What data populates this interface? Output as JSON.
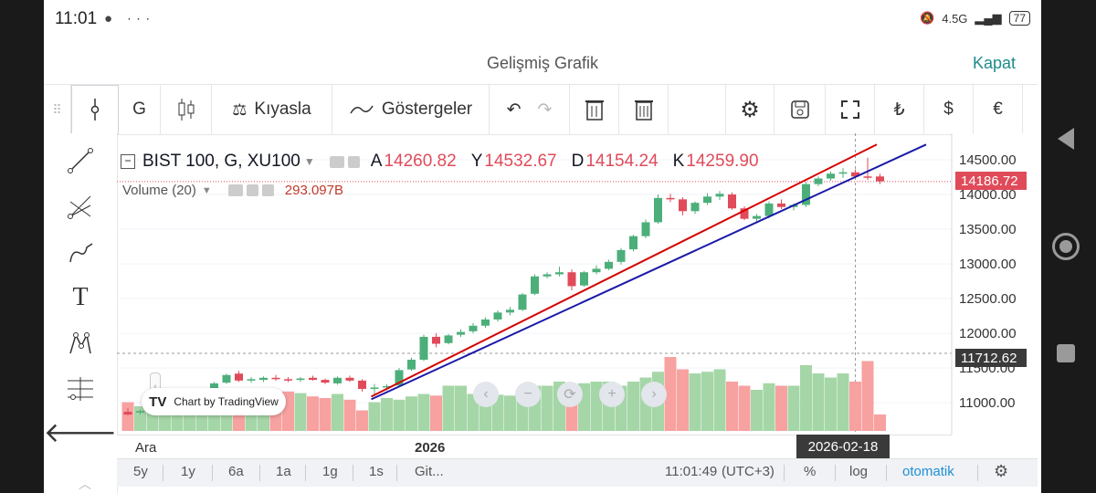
{
  "status_bar": {
    "time": "11:01",
    "icons_left": "● ∙∙∙",
    "network": "4.5G",
    "battery": "77"
  },
  "header": {
    "title": "Gelişmiş Grafik",
    "close_label": "Kapat"
  },
  "toolbar": {
    "interval": "G",
    "compare_label": "Kıyasla",
    "indicators_label": "Göstergeler",
    "currency_try": "₺",
    "currency_usd": "$",
    "currency_eur": "€"
  },
  "legend": {
    "symbol": "BIST 100, G, XU100",
    "open_key": "A",
    "open_value": "14260.82",
    "high_key": "Y",
    "high_value": "14532.67",
    "low_key": "D",
    "low_value": "14154.24",
    "close_key": "K",
    "close_value": "14259.90",
    "volume_label": "Volume (20)",
    "volume_value": "293.097B"
  },
  "tv_logo": {
    "text": "Chart by TradingView"
  },
  "y_ticks": [
    "14500.00",
    "14000.00",
    "13500.00",
    "13000.00",
    "12500.00",
    "12000.00",
    "11500.00",
    "11000.00"
  ],
  "price_tags": {
    "last": "14186.72",
    "crosshair": "11712.62"
  },
  "x_axis": {
    "labels": [
      "Ara",
      "2026"
    ],
    "crosshair_date": "2026-02-18"
  },
  "bottom_bar": {
    "ranges": [
      "5y",
      "1y",
      "6a",
      "1a",
      "1g",
      "1s",
      "Git..."
    ],
    "clock": "11:01:49",
    "timezone": "(UTC+3)",
    "percent_label": "%",
    "log_label": "log",
    "auto_label": "otomatik"
  },
  "colors": {
    "up": "#4caf7a",
    "down": "#e04b5a",
    "volume_up": "#a5d6a7",
    "volume_down": "#f7a1a1",
    "trend_upper": "#d50000",
    "trend_lower": "#1a1aa8",
    "accent": "#1f8a8a"
  },
  "chart_data": {
    "type": "candlestick",
    "y_axis_range": [
      10700,
      14750
    ],
    "candles": [
      {
        "o": 10870,
        "h": 10920,
        "l": 10820,
        "c": 10830
      },
      {
        "o": 10860,
        "h": 10900,
        "l": 10830,
        "c": 10880
      },
      {
        "o": 10890,
        "h": 10960,
        "l": 10870,
        "c": 10940
      },
      {
        "o": 10950,
        "h": 11060,
        "l": 10930,
        "c": 11050
      },
      {
        "o": 11060,
        "h": 11110,
        "l": 11030,
        "c": 11080
      },
      {
        "o": 11090,
        "h": 11140,
        "l": 11060,
        "c": 11120
      },
      {
        "o": 11130,
        "h": 11210,
        "l": 11100,
        "c": 11190
      },
      {
        "o": 11200,
        "h": 11300,
        "l": 11180,
        "c": 11280
      },
      {
        "o": 11290,
        "h": 11420,
        "l": 11270,
        "c": 11400
      },
      {
        "o": 11420,
        "h": 11460,
        "l": 11300,
        "c": 11320
      },
      {
        "o": 11320,
        "h": 11370,
        "l": 11290,
        "c": 11340
      },
      {
        "o": 11330,
        "h": 11380,
        "l": 11300,
        "c": 11360
      },
      {
        "o": 11360,
        "h": 11400,
        "l": 11320,
        "c": 11340
      },
      {
        "o": 11340,
        "h": 11370,
        "l": 11300,
        "c": 11320
      },
      {
        "o": 11330,
        "h": 11370,
        "l": 11300,
        "c": 11350
      },
      {
        "o": 11360,
        "h": 11390,
        "l": 11320,
        "c": 11330
      },
      {
        "o": 11330,
        "h": 11350,
        "l": 11270,
        "c": 11290
      },
      {
        "o": 11280,
        "h": 11380,
        "l": 11260,
        "c": 11360
      },
      {
        "o": 11360,
        "h": 11390,
        "l": 11300,
        "c": 11320
      },
      {
        "o": 11320,
        "h": 11340,
        "l": 11160,
        "c": 11200
      },
      {
        "o": 11200,
        "h": 11270,
        "l": 11100,
        "c": 11220
      },
      {
        "o": 11230,
        "h": 11270,
        "l": 11180,
        "c": 11240
      },
      {
        "o": 11250,
        "h": 11500,
        "l": 11240,
        "c": 11470
      },
      {
        "o": 11480,
        "h": 11650,
        "l": 11460,
        "c": 11620
      },
      {
        "o": 11620,
        "h": 11980,
        "l": 11600,
        "c": 11950
      },
      {
        "o": 11950,
        "h": 12000,
        "l": 11800,
        "c": 11850
      },
      {
        "o": 11860,
        "h": 11990,
        "l": 11840,
        "c": 11970
      },
      {
        "o": 11980,
        "h": 12060,
        "l": 11950,
        "c": 12020
      },
      {
        "o": 12030,
        "h": 12150,
        "l": 12000,
        "c": 12110
      },
      {
        "o": 12110,
        "h": 12230,
        "l": 12080,
        "c": 12200
      },
      {
        "o": 12200,
        "h": 12330,
        "l": 12170,
        "c": 12300
      },
      {
        "o": 12300,
        "h": 12380,
        "l": 12260,
        "c": 12340
      },
      {
        "o": 12340,
        "h": 12580,
        "l": 12320,
        "c": 12560
      },
      {
        "o": 12570,
        "h": 12850,
        "l": 12550,
        "c": 12820
      },
      {
        "o": 12820,
        "h": 12880,
        "l": 12790,
        "c": 12850
      },
      {
        "o": 12850,
        "h": 12960,
        "l": 12820,
        "c": 12880
      },
      {
        "o": 12880,
        "h": 12920,
        "l": 12620,
        "c": 12680
      },
      {
        "o": 12690,
        "h": 12900,
        "l": 12670,
        "c": 12880
      },
      {
        "o": 12880,
        "h": 12980,
        "l": 12850,
        "c": 12930
      },
      {
        "o": 12930,
        "h": 13060,
        "l": 12910,
        "c": 13030
      },
      {
        "o": 13030,
        "h": 13230,
        "l": 12990,
        "c": 13200
      },
      {
        "o": 13210,
        "h": 13420,
        "l": 13180,
        "c": 13400
      },
      {
        "o": 13400,
        "h": 13640,
        "l": 13370,
        "c": 13600
      },
      {
        "o": 13600,
        "h": 14000,
        "l": 13580,
        "c": 13950
      },
      {
        "o": 13950,
        "h": 14010,
        "l": 13890,
        "c": 13930
      },
      {
        "o": 13930,
        "h": 13960,
        "l": 13700,
        "c": 13760
      },
      {
        "o": 13760,
        "h": 13900,
        "l": 13720,
        "c": 13880
      },
      {
        "o": 13880,
        "h": 14020,
        "l": 13850,
        "c": 13970
      },
      {
        "o": 13970,
        "h": 14050,
        "l": 13920,
        "c": 14010
      },
      {
        "o": 14000,
        "h": 14030,
        "l": 13780,
        "c": 13800
      },
      {
        "o": 13800,
        "h": 13830,
        "l": 13630,
        "c": 13650
      },
      {
        "o": 13650,
        "h": 13720,
        "l": 13600,
        "c": 13690
      },
      {
        "o": 13690,
        "h": 13900,
        "l": 13660,
        "c": 13870
      },
      {
        "o": 13870,
        "h": 13930,
        "l": 13790,
        "c": 13820
      },
      {
        "o": 13820,
        "h": 13870,
        "l": 13770,
        "c": 13850
      },
      {
        "o": 13850,
        "h": 14180,
        "l": 13820,
        "c": 14150
      },
      {
        "o": 14150,
        "h": 14260,
        "l": 14120,
        "c": 14230
      },
      {
        "o": 14230,
        "h": 14330,
        "l": 14200,
        "c": 14300
      },
      {
        "o": 14300,
        "h": 14380,
        "l": 14240,
        "c": 14320
      },
      {
        "o": 14320,
        "h": 14360,
        "l": 14230,
        "c": 14260
      },
      {
        "o": 14260,
        "h": 14530,
        "l": 14210,
        "c": 14250
      },
      {
        "o": 14260,
        "h": 14300,
        "l": 14150,
        "c": 14190
      }
    ],
    "volume_heights": [
      0.35,
      0.3,
      0.35,
      0.38,
      0.4,
      0.38,
      0.42,
      0.4,
      0.45,
      0.43,
      0.4,
      0.43,
      0.45,
      0.48,
      0.46,
      0.42,
      0.4,
      0.45,
      0.38,
      0.25,
      0.35,
      0.4,
      0.38,
      0.42,
      0.45,
      0.43,
      0.55,
      0.55,
      0.45,
      0.42,
      0.44,
      0.43,
      0.45,
      0.55,
      0.55,
      0.6,
      0.55,
      0.58,
      0.6,
      0.6,
      0.55,
      0.6,
      0.65,
      0.72,
      0.9,
      0.75,
      0.7,
      0.72,
      0.75,
      0.6,
      0.55,
      0.5,
      0.58,
      0.55,
      0.55,
      0.8,
      0.7,
      0.65,
      0.7,
      0.6,
      0.85,
      0.2
    ],
    "trendlines": [
      {
        "name": "upper",
        "from": {
          "index": 19,
          "price": 11090
        },
        "to": {
          "index": 60,
          "price": 14720
        }
      },
      {
        "name": "lower",
        "from": {
          "index": 19,
          "price": 11050
        },
        "to": {
          "index": 64,
          "price": 14720
        }
      }
    ]
  }
}
